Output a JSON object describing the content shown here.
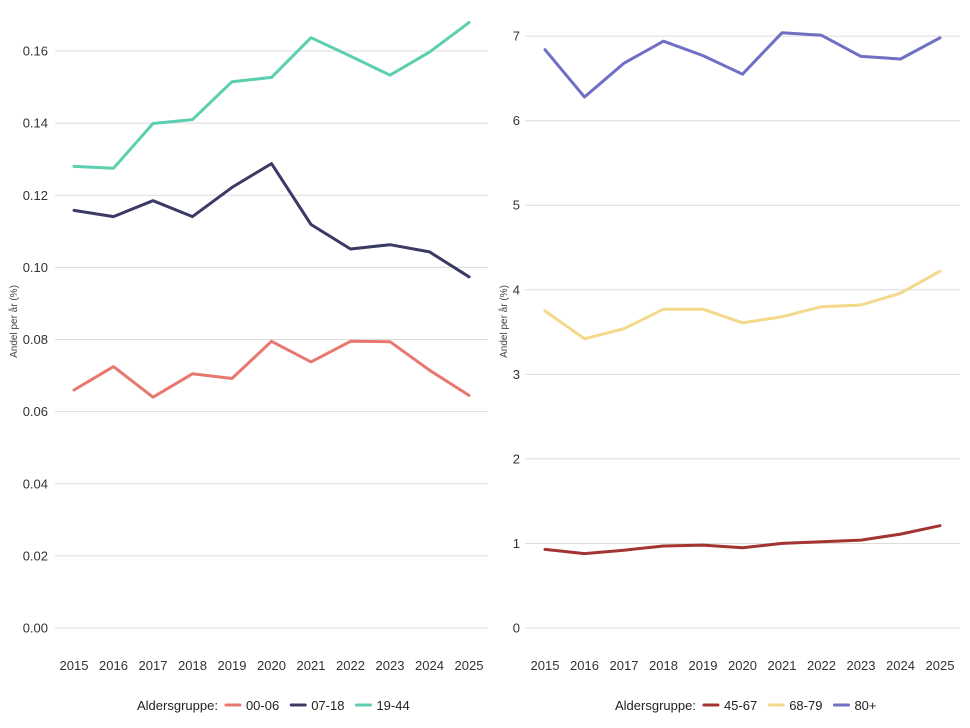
{
  "chart_data": [
    {
      "type": "line",
      "title": "",
      "xlabel": "",
      "ylabel": "Andel per år (%)",
      "x": [
        2015,
        2016,
        2017,
        2018,
        2019,
        2020,
        2021,
        2022,
        2023,
        2024,
        2025
      ],
      "ylim": [
        0,
        0.17
      ],
      "yticks": [
        0.0,
        0.02,
        0.04,
        0.06,
        0.08,
        0.1,
        0.12,
        0.14,
        0.16
      ],
      "ytick_labels": [
        "0.00",
        "0.02",
        "0.04",
        "0.06",
        "0.08",
        "0.10",
        "0.12",
        "0.14",
        "0.16"
      ],
      "grid": "horizontal",
      "legend_title": "Aldersgruppe:",
      "legend_position": "bottom",
      "series": [
        {
          "name": "00-06",
          "color": "#e8786f",
          "values": [
            0.066,
            0.0725,
            0.064,
            0.0705,
            0.0692,
            0.0795,
            0.0738,
            0.0795,
            0.0794,
            0.0715,
            0.0645
          ]
        },
        {
          "name": "07-18",
          "color": "#3a3a64",
          "values": [
            0.1158,
            0.1141,
            0.1185,
            0.1141,
            0.1222,
            0.1288,
            0.1119,
            0.1051,
            0.1063,
            0.1043,
            0.0974
          ]
        },
        {
          "name": "19-44",
          "color": "#5ccfb0",
          "values": [
            0.128,
            0.1275,
            0.1399,
            0.141,
            0.1515,
            0.1527,
            0.1637,
            0.1586,
            0.1533,
            0.1597,
            0.1679
          ]
        }
      ]
    },
    {
      "type": "line",
      "title": "",
      "xlabel": "",
      "ylabel": "Andel per år (%)",
      "x": [
        2015,
        2016,
        2017,
        2018,
        2019,
        2020,
        2021,
        2022,
        2023,
        2024,
        2025
      ],
      "ylim": [
        0,
        7.25
      ],
      "yticks": [
        0,
        1,
        2,
        3,
        4,
        5,
        6,
        7
      ],
      "ytick_labels": [
        "0",
        "1",
        "2",
        "3",
        "4",
        "5",
        "6",
        "7"
      ],
      "grid": "horizontal",
      "legend_title": "Aldersgruppe:",
      "legend_position": "bottom",
      "series": [
        {
          "name": "45-67",
          "color": "#a23532",
          "values": [
            0.93,
            0.88,
            0.92,
            0.97,
            0.98,
            0.95,
            1.0,
            1.02,
            1.04,
            1.11,
            1.21
          ]
        },
        {
          "name": "68-79",
          "color": "#f4d98a",
          "values": [
            3.75,
            3.42,
            3.54,
            3.77,
            3.77,
            3.61,
            3.68,
            3.8,
            3.82,
            3.96,
            4.22
          ]
        },
        {
          "name": "80+",
          "color": "#6f6fc4",
          "values": [
            6.84,
            6.28,
            6.68,
            6.94,
            6.77,
            6.55,
            7.04,
            7.01,
            6.76,
            6.73,
            6.98
          ]
        }
      ]
    }
  ]
}
